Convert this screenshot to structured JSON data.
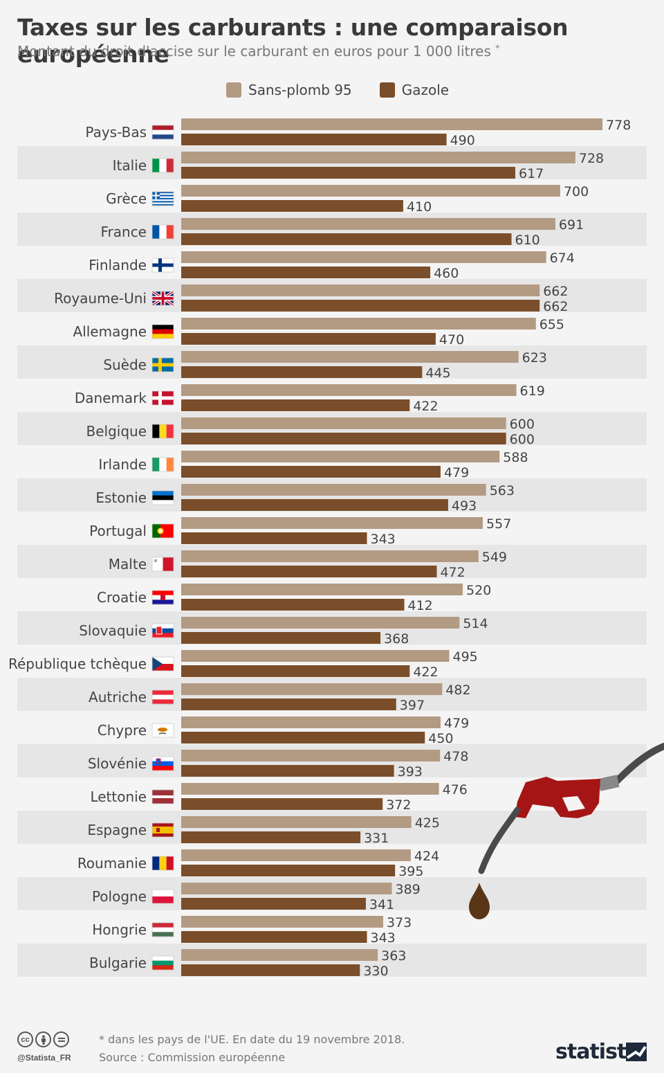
{
  "header": {
    "title": "Taxes sur les carburants : une comparaison européenne",
    "subtitle": "Montant du droit d'accise sur le carburant en euros pour 1 000 litres",
    "subtitle_mark": "*"
  },
  "colors": {
    "unleaded": "#b39a83",
    "diesel": "#7a4e2a",
    "row_stripe": "#e6e6e6",
    "background": "#f4f4f4",
    "pump_red": "#a61515",
    "hose": "#4a4a4a"
  },
  "chart_data": {
    "type": "bar",
    "orientation": "horizontal",
    "series": [
      {
        "name": "Sans-plomb 95",
        "values": [
          778,
          728,
          700,
          691,
          674,
          662,
          655,
          623,
          619,
          600,
          588,
          563,
          557,
          549,
          520,
          514,
          495,
          482,
          479,
          478,
          476,
          425,
          424,
          389,
          373,
          363
        ]
      },
      {
        "name": "Gazole",
        "values": [
          490,
          617,
          410,
          610,
          460,
          662,
          470,
          445,
          422,
          600,
          479,
          493,
          343,
          472,
          412,
          368,
          422,
          397,
          450,
          393,
          372,
          331,
          395,
          341,
          343,
          330
        ]
      }
    ],
    "categories": [
      "Pays-Bas",
      "Italie",
      "Grèce",
      "France",
      "Finlande",
      "Royaume-Uni",
      "Allemagne",
      "Suède",
      "Danemark",
      "Belgique",
      "Irlande",
      "Estonie",
      "Portugal",
      "Malte",
      "Croatie",
      "Slovaquie",
      "République tchèque",
      "Autriche",
      "Chypre",
      "Slovénie",
      "Lettonie",
      "Espagne",
      "Roumanie",
      "Pologne",
      "Hongrie",
      "Bulgarie"
    ],
    "flags": [
      "nl",
      "it",
      "gr",
      "fr",
      "fi",
      "gb",
      "de",
      "se",
      "dk",
      "be",
      "ie",
      "ee",
      "pt",
      "mt",
      "hr",
      "sk",
      "cz",
      "at",
      "cy",
      "si",
      "lv",
      "es",
      "ro",
      "pl",
      "hu",
      "bg"
    ],
    "xlim": [
      0,
      800
    ],
    "legend_position": "top",
    "data_labels": true,
    "grid": false
  },
  "legend": {
    "items": [
      {
        "label": "Sans-plomb 95",
        "color": "#b39a83"
      },
      {
        "label": "Gazole",
        "color": "#7a4e2a"
      }
    ]
  },
  "footer": {
    "handle": "@Statista_FR",
    "note": "* dans les pays de l'UE. En date du 19 novembre 2018.",
    "source": "Source : Commission européenne",
    "brand": "statista",
    "license_icons": [
      "cc-icon",
      "by-icon",
      "nd-icon"
    ]
  }
}
